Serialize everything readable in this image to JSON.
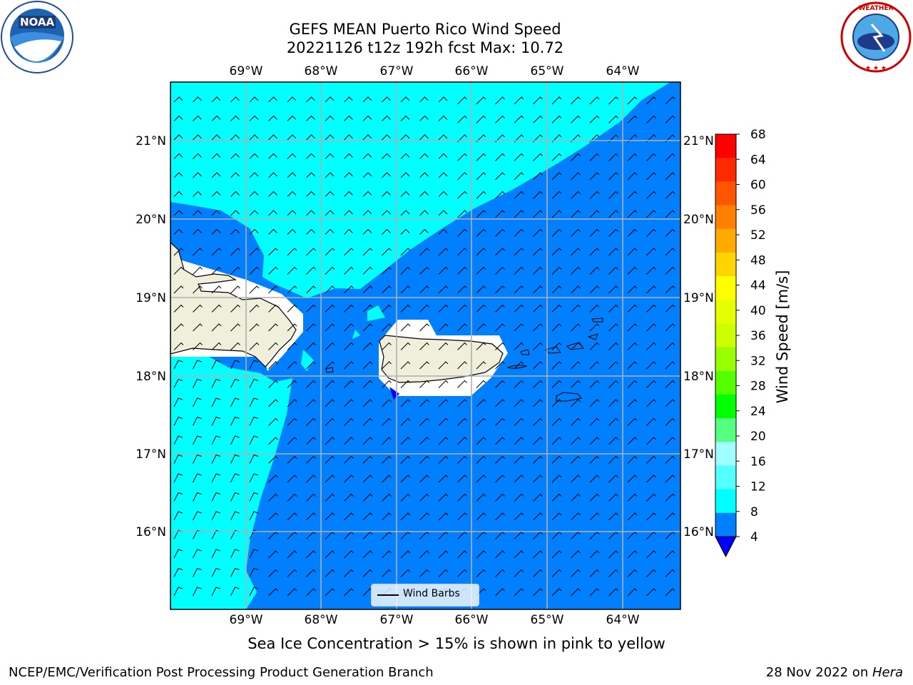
{
  "title": {
    "line1": "GEFS MEAN Puerto Rico Wind Speed",
    "line2": "20221126 t12z 192h fcst   Max: 10.72"
  },
  "map": {
    "lon_labels": [
      "69°W",
      "68°W",
      "67°W",
      "66°W",
      "65°W",
      "64°W"
    ],
    "lat_labels": [
      "21°N",
      "20°N",
      "19°N",
      "18°N",
      "17°N",
      "16°N"
    ],
    "legend_label": "Wind Barbs",
    "colors": {
      "ocean_light": "#00ffff",
      "ocean_dark": "#0080ff",
      "land": "#efefdb",
      "grid": "#b0b0b0"
    }
  },
  "colorbar": {
    "title": "Wind Speed [m/s]",
    "ticks": [
      "68",
      "64",
      "60",
      "56",
      "52",
      "48",
      "44",
      "40",
      "36",
      "32",
      "28",
      "24",
      "20",
      "16",
      "12",
      "8",
      "4"
    ],
    "colors": [
      "#ff0000",
      "#ff2a00",
      "#ff5500",
      "#ff8000",
      "#ffaa00",
      "#ffd400",
      "#ffff00",
      "#e6ff00",
      "#ccff00",
      "#99ff00",
      "#55ff00",
      "#00ff00",
      "#55ff80",
      "#a0ffff",
      "#55ffff",
      "#00ffff",
      "#0080ff"
    ],
    "under_color": "#0000ff"
  },
  "note": "Sea Ice Concentration > 15% is shown in pink to yellow",
  "footer": {
    "left": "NCEP/EMC/Verification Post Processing Product Generation Branch",
    "right_prefix": "28 Nov 2022 on ",
    "right_machine": "Hera"
  },
  "logos": {
    "left": "NOAA",
    "right": "NATIONAL WEATHER SERVICE"
  }
}
